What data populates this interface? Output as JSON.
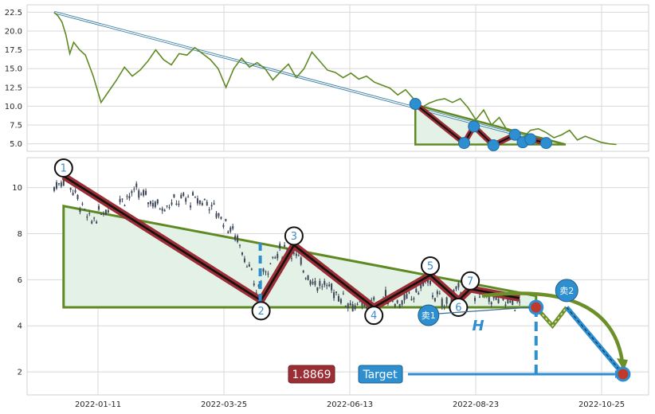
{
  "chart_data": [
    {
      "type": "line",
      "panel": "top",
      "ylim": [
        4.0,
        23.5
      ],
      "yticks": [
        "5.0",
        "7.5",
        "10.0",
        "12.5",
        "15.0",
        "17.5",
        "20.0",
        "22.5"
      ],
      "series": [
        {
          "values_x_days": [
            0,
            2,
            4,
            6,
            8,
            10,
            13,
            16,
            20,
            24,
            28,
            32,
            36,
            40,
            44,
            48,
            52,
            56,
            60,
            64,
            68,
            72,
            76,
            80,
            84,
            88,
            92,
            96,
            100,
            104,
            108,
            112,
            116,
            120,
            124,
            128,
            132,
            136,
            140,
            144,
            148,
            152,
            156,
            160,
            164,
            168,
            172,
            176,
            180,
            184,
            188,
            192,
            196,
            200,
            204,
            208,
            212,
            216,
            220,
            224,
            228,
            232,
            236,
            240,
            244,
            248,
            252,
            256,
            260,
            264,
            268,
            272,
            276,
            280,
            284,
            288
          ],
          "values": [
            22.5,
            22.0,
            21.2,
            19.5,
            17.0,
            18.5,
            17.5,
            16.8,
            14.0,
            10.5,
            12.0,
            13.5,
            15.2,
            14.0,
            14.8,
            16.0,
            17.5,
            16.2,
            15.5,
            17.0,
            16.8,
            17.8,
            17.0,
            16.2,
            15.0,
            12.5,
            15.0,
            16.4,
            15.2,
            15.8,
            15.0,
            13.5,
            14.6,
            15.6,
            13.8,
            15.0,
            17.2,
            16.0,
            14.8,
            14.5,
            13.8,
            14.4,
            13.6,
            14.0,
            13.2,
            12.8,
            12.4,
            11.5,
            12.2,
            11.0,
            9.8,
            10.4,
            10.8,
            11.0,
            10.5,
            11.0,
            9.8,
            8.2,
            9.5,
            7.5,
            8.5,
            6.8,
            6.2,
            5.8,
            6.8,
            7.0,
            6.5,
            5.8,
            6.2,
            6.8,
            5.5,
            6.0,
            5.6,
            5.2,
            5.0,
            4.9
          ]
        }
      ],
      "annotations": {
        "trend_arrow_from": [
          0,
          22.5
        ],
        "trend_arrow_to": [
          255,
          5.0
        ],
        "triangle": [
          [
            185,
            10.2
          ],
          [
            185,
            4.9
          ],
          [
            262,
            4.9
          ]
        ],
        "zigzag_points": [
          [
            185,
            10.3
          ],
          [
            210,
            5.1
          ],
          [
            215,
            7.3
          ],
          [
            225,
            4.8
          ],
          [
            236,
            6.2
          ],
          [
            240,
            5.2
          ],
          [
            244,
            5.6
          ],
          [
            252,
            5.1
          ]
        ]
      }
    },
    {
      "type": "candlestick",
      "panel": "bottom",
      "ylim": [
        1.0,
        11.3
      ],
      "yticks": [
        "2",
        "4",
        "6",
        "8",
        "10"
      ],
      "xticks": [
        "2022-01-11",
        "2022-03-25",
        "2022-06-13",
        "2022-08-23",
        "2022-10-25"
      ],
      "price_path_days": [
        0,
        5,
        10,
        15,
        25,
        35,
        45,
        55,
        65,
        72,
        78,
        82,
        86,
        88,
        92,
        96,
        100,
        104,
        108,
        112,
        118,
        124,
        130,
        134,
        138,
        142,
        146,
        150,
        154,
        158,
        162,
        166,
        170,
        174,
        178,
        182,
        186,
        190,
        194,
        198
      ],
      "price_path": [
        10.0,
        10.5,
        9.5,
        8.5,
        9.3,
        9.8,
        9.2,
        9.5,
        9.4,
        8.6,
        7.8,
        6.8,
        5.4,
        6.0,
        6.8,
        7.2,
        7.4,
        6.8,
        6.2,
        5.8,
        5.6,
        5.1,
        4.8,
        4.9,
        5.0,
        5.3,
        5.0,
        5.1,
        5.4,
        6.0,
        5.3,
        4.9,
        5.3,
        5.6,
        5.5,
        5.3,
        5.2,
        5.1,
        5.0,
        4.9
      ],
      "markers": [
        {
          "label": "1",
          "day": 4,
          "price": 10.85
        },
        {
          "label": "2",
          "day": 88,
          "price": 4.65
        },
        {
          "label": "3",
          "day": 102,
          "price": 7.9
        },
        {
          "label": "4",
          "day": 136,
          "price": 4.45
        },
        {
          "label": "5",
          "day": 160,
          "price": 6.6
        },
        {
          "label": "6",
          "day": 172,
          "price": 4.8
        },
        {
          "label": "7",
          "day": 177,
          "price": 5.95
        }
      ],
      "zigzag": [
        [
          4,
          10.5
        ],
        [
          88,
          5.1
        ],
        [
          102,
          7.5
        ],
        [
          136,
          4.8
        ],
        [
          160,
          6.2
        ],
        [
          172,
          5.1
        ],
        [
          177,
          5.6
        ],
        [
          198,
          5.2
        ]
      ],
      "triangle": [
        [
          4,
          9.2
        ],
        [
          4,
          4.8
        ],
        [
          205,
          4.8
        ],
        [
          205,
          5.3
        ]
      ],
      "target_line_price": 1.9,
      "h_dashed_x_day": 88,
      "projection_points": [
        [
          205,
          4.8
        ],
        [
          212,
          4.0
        ],
        [
          218,
          4.8
        ],
        [
          242,
          1.9
        ]
      ],
      "sell_labels": [
        {
          "label": "卖1",
          "day": 164,
          "price": 4.25
        },
        {
          "label": "卖2",
          "day": 215,
          "price": 5.6
        }
      ],
      "h_label": "H",
      "target_label": "Target",
      "value_badge": "1.8869"
    }
  ]
}
